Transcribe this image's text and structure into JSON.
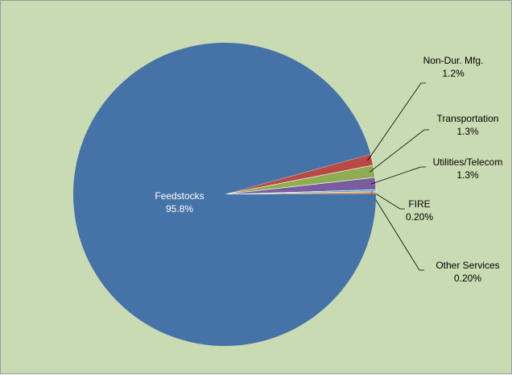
{
  "chart_data": {
    "type": "pie",
    "title": "",
    "slices": [
      {
        "label": "Non-Dur. Mfg.",
        "value": 1.2,
        "value_label": "1.2%",
        "color": "#b84a46"
      },
      {
        "label": "Transportation",
        "value": 1.3,
        "value_label": "1.3%",
        "color": "#8fac52"
      },
      {
        "label": "Utilities/Telecom",
        "value": 1.3,
        "value_label": "1.3%",
        "color": "#7a5d9e"
      },
      {
        "label": "FIRE",
        "value": 0.2,
        "value_label": "0.20%",
        "color": "#4aa3c4"
      },
      {
        "label": "Other Services",
        "value": 0.2,
        "value_label": "0.20%",
        "color": "#e58f3c"
      },
      {
        "label": "Feedstocks",
        "value": 95.8,
        "value_label": "95.8%",
        "color": "#4572a7"
      }
    ],
    "label_style": "category name and percentage",
    "legend": "none"
  }
}
